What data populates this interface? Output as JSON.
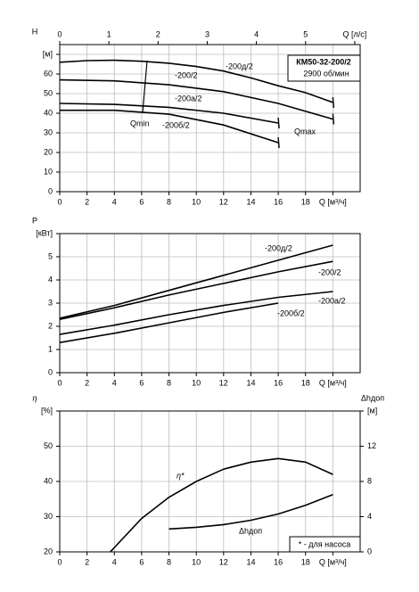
{
  "chart_data": [
    {
      "type": "line",
      "color": "#000000",
      "grid": true,
      "ylabel": "H",
      "model": "КМ50-32-200/2",
      "speed": "2900 об/мин",
      "qmin_label": "Qmin",
      "qmax_label": "Qmax",
      "xlim": [
        0,
        22
      ],
      "xticks": [
        0,
        2,
        4,
        6,
        8,
        10,
        12,
        14,
        16,
        18,
        {
          "value": 20,
          "label": "Q [м³/ч]"
        }
      ],
      "x2lim": [
        0,
        6.11
      ],
      "x2ticks": [
        0,
        1,
        2,
        3,
        4,
        5,
        {
          "value": 6,
          "label": "Q [л/с]"
        }
      ],
      "ylim": [
        0,
        75
      ],
      "yticks": [
        0,
        10,
        20,
        30,
        40,
        50,
        60,
        {
          "value": 70,
          "label": "[м]"
        }
      ],
      "series": [
        {
          "name": "-200д/2",
          "x": [
            0,
            2,
            4,
            6,
            8,
            10,
            12,
            14,
            16,
            18,
            20
          ],
          "values": [
            66,
            66.8,
            67,
            66.5,
            65.5,
            63.8,
            61.5,
            58,
            54,
            50.5,
            45.5
          ]
        },
        {
          "name": "-200/2",
          "x": [
            0,
            4,
            8,
            12,
            16,
            20
          ],
          "values": [
            57,
            56.5,
            54.5,
            51,
            45,
            37
          ]
        },
        {
          "name": "-200а/2",
          "x": [
            0,
            4,
            8,
            12,
            16
          ],
          "values": [
            45,
            44.5,
            43,
            40,
            35
          ]
        },
        {
          "name": "-200б/2",
          "x": [
            0,
            4,
            8,
            12,
            16
          ],
          "values": [
            41.5,
            41.5,
            39.5,
            34,
            25
          ]
        }
      ]
    },
    {
      "type": "line",
      "color": "#000000",
      "grid": true,
      "ylabel": "P",
      "xlim": [
        0,
        22
      ],
      "xticks": [
        0,
        2,
        4,
        6,
        8,
        10,
        12,
        14,
        16,
        18,
        {
          "value": 20,
          "label": "Q [м³/ч]"
        }
      ],
      "ylim": [
        0,
        6
      ],
      "yticks": [
        0,
        1,
        2,
        3,
        4,
        5,
        {
          "value": 6,
          "label": "[кВт]"
        }
      ],
      "series": [
        {
          "name": "-200д/2",
          "x": [
            0,
            4,
            8,
            12,
            16,
            20
          ],
          "values": [
            2.35,
            2.9,
            3.55,
            4.2,
            4.85,
            5.5
          ]
        },
        {
          "name": "-200/2",
          "x": [
            0,
            4,
            8,
            12,
            16,
            20
          ],
          "values": [
            2.3,
            2.8,
            3.35,
            3.85,
            4.35,
            4.8
          ]
        },
        {
          "name": "-200а/2",
          "x": [
            0,
            4,
            8,
            12,
            16,
            20
          ],
          "values": [
            1.65,
            2.05,
            2.5,
            2.9,
            3.25,
            3.5
          ]
        },
        {
          "name": "-200б/2",
          "x": [
            0,
            4,
            8,
            12,
            16
          ],
          "values": [
            1.3,
            1.7,
            2.15,
            2.6,
            3.0
          ]
        }
      ]
    },
    {
      "type": "line",
      "color": "#000000",
      "grid": true,
      "ylabel": "η",
      "y2label": "Δhдоп",
      "note": "* - для насоса",
      "xlim": [
        0,
        22
      ],
      "xticks": [
        0,
        2,
        4,
        6,
        8,
        10,
        12,
        14,
        16,
        18,
        {
          "value": 20,
          "label": "Q [м³/ч]"
        }
      ],
      "ylim": [
        20,
        60
      ],
      "yticks": [
        20,
        30,
        40,
        50,
        {
          "value": 60,
          "label": "[%]"
        }
      ],
      "y2lim": [
        0,
        16
      ],
      "y2ticks": [
        0,
        4,
        8,
        12,
        {
          "value": 16,
          "label": "[м]"
        }
      ],
      "series": [
        {
          "name": "η*",
          "x": [
            3.7,
            6,
            8,
            10,
            12,
            14,
            16,
            18,
            20
          ],
          "values": [
            20,
            29.5,
            35.5,
            40,
            43.5,
            45.5,
            46.5,
            45.5,
            42
          ]
        },
        {
          "name": "Δhдоп",
          "axis": "y2",
          "x": [
            8,
            10,
            12,
            14,
            16,
            18,
            20
          ],
          "values": [
            2.6,
            2.8,
            3.1,
            3.6,
            4.3,
            5.3,
            6.5
          ]
        }
      ]
    }
  ]
}
